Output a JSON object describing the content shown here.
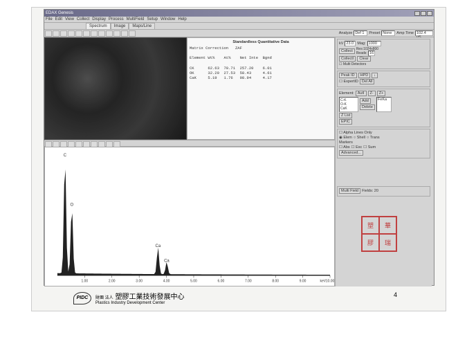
{
  "app": {
    "brand": "EDAX Genesis",
    "menus": [
      "File",
      "Edit",
      "View",
      "Collect",
      "Display",
      "Process",
      "MultiField",
      "Setup",
      "Window",
      "Help"
    ],
    "tabs": [
      "Spectrum",
      "Image",
      "Maps/Line"
    ],
    "active_tab": 0,
    "toolbar_right": {
      "analyze_label": "Analyze",
      "analyze_value": "Def 1",
      "preset_label": "Preset",
      "preset_value": "None",
      "amptime_label": "Amp Time",
      "amptime_value": "102.4 uS"
    }
  },
  "quant": {
    "title": "Standardless Quantitative Data",
    "corr_label": "Matrix Correction",
    "corr_value": "ZAF",
    "headers": [
      "Element",
      "Wt%",
      "At%",
      "Net Inte",
      "Bgnd"
    ],
    "rows": [
      [
        "CK",
        "62.63",
        "70.71",
        "257.20",
        "6.01"
      ],
      [
        "OK",
        "32.20",
        "27.53",
        "58.43",
        "4.61"
      ],
      [
        "CaK",
        "5.19",
        "1.76",
        "98.94",
        "4.17"
      ]
    ]
  },
  "right": {
    "kv_label": "kV",
    "kv_value": "23.0",
    "mag_label": "Mag:",
    "mag_value": "1000",
    "collect_label": "Collect",
    "res_label": "Res:1024x800",
    "reads_label": "Reads:",
    "reads_value": "16",
    "collecti_label": "CollectI",
    "clear_label": "Clear",
    "multi_label": "Multi Detectors",
    "peak_label": "Peak ID",
    "hpd_label": "HPD",
    "expertid_label": "ExpertID",
    "delall_label": "Del All",
    "element_label": "Element:",
    "autl_label": "AutI",
    "z_minus": "Z-",
    "z_plus": "Z+",
    "add_label": "Add",
    "delete_label": "Delete",
    "feka_label": "FeKa",
    "zlist_label": "Z List",
    "epic_label": "EPIC",
    "alpha_label": "Alpha Lines Only",
    "elem_radio": "Elem",
    "shell_radio": "Shell",
    "trans_radio": "Trans",
    "markers_label": "Markers",
    "abs_radio": "Abs",
    "esc_radio": "Esc",
    "sum_radio": "Sum",
    "advanced_label": "Advanced...",
    "multifield_label": "Multi Field",
    "fields_label": "Fields: 20",
    "element_list": [
      "C-K",
      "O-K",
      "CaK"
    ]
  },
  "spectrum": {
    "xmax": 10.0,
    "xticks": [
      1.0,
      2.0,
      3.0,
      4.0,
      5.0,
      6.0,
      7.0,
      8.0,
      9.0,
      10.0
    ],
    "kev_label": "keV",
    "bg": "#ffffff",
    "axis_color": "#333333",
    "line_color": "#222222",
    "peaks": [
      {
        "x": 0.28,
        "h": 0.95,
        "label": "C"
      },
      {
        "x": 0.53,
        "h": 0.55,
        "label": "O"
      },
      {
        "x": 3.69,
        "h": 0.22,
        "label": "Ca"
      },
      {
        "x": 4.01,
        "h": 0.1,
        "label": "Ca"
      }
    ],
    "noise": [
      0.02,
      0.03,
      0.015,
      0.025,
      0.02,
      0.018,
      0.015,
      0.012,
      0.01,
      0.008
    ]
  },
  "footer": {
    "logo": "PIDC",
    "line1_prefix": "財團 法人",
    "line1": "塑膠工業技術發展中心",
    "line2": "Plastics Industry Development Center",
    "page": "4"
  },
  "stamp": [
    "塑",
    "華",
    "膠",
    "瑞",
    "發",
    "榮",
    "展",
    "和"
  ]
}
